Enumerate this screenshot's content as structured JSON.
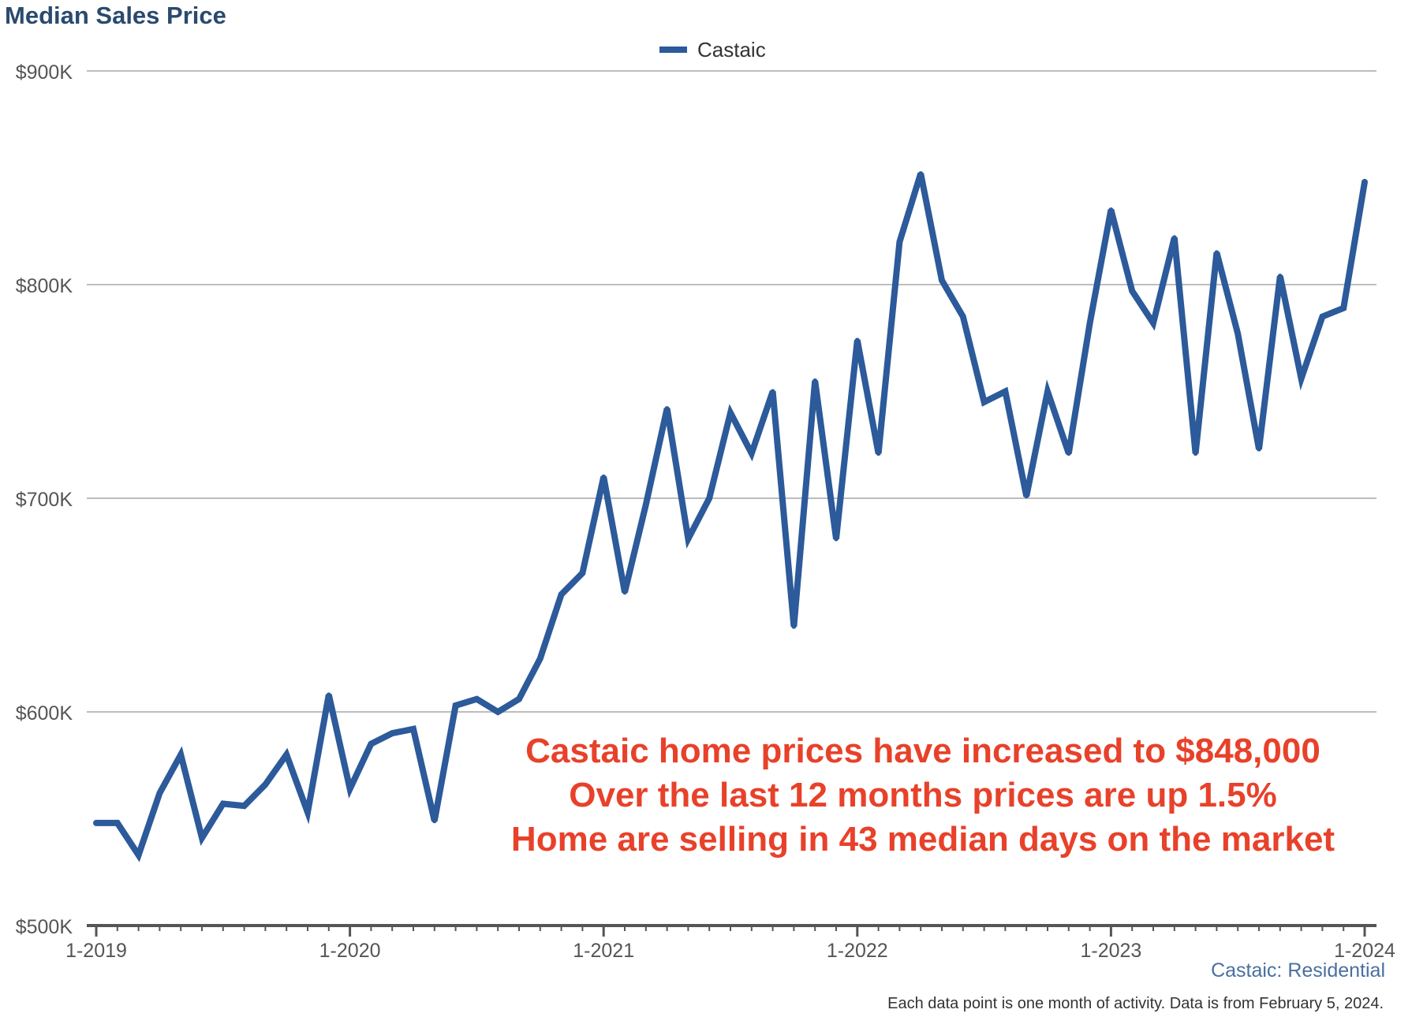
{
  "title": "Median Sales Price",
  "source_label": "Castaic: Residential",
  "footnote": "Each data point is one month of activity. Data is from February 5, 2024.",
  "annotation": [
    "Castaic home prices have increased to $848,000",
    "Over the last 12 months prices are up 1.5%",
    "Home are selling in 43 median days on the market"
  ],
  "colors": {
    "line": "#2c5a9a",
    "annotation": "#e8412a",
    "grid": "#bdbdbd",
    "axis": "#555555"
  },
  "chart_data": {
    "type": "line",
    "title": "Median Sales Price",
    "xlabel": "",
    "ylabel": "",
    "ylim": [
      500000,
      900000
    ],
    "yticks": [
      500000,
      600000,
      700000,
      800000,
      900000
    ],
    "ytick_labels": [
      "$500K",
      "$600K",
      "$700K",
      "$800K",
      "$900K"
    ],
    "xtick_labels": [
      "1-2019",
      "1-2020",
      "1-2021",
      "1-2022",
      "1-2023",
      "1-2024"
    ],
    "xtick_index": [
      0,
      12,
      24,
      36,
      48,
      60
    ],
    "legend": "top-center",
    "grid": true,
    "series": [
      {
        "name": "Castaic",
        "values": [
          548000,
          548000,
          533000,
          562000,
          580000,
          541000,
          557000,
          556000,
          566000,
          580000,
          553000,
          608000,
          564000,
          585000,
          590000,
          592000,
          549000,
          603000,
          606000,
          600000,
          606000,
          625000,
          655000,
          665000,
          710000,
          656000,
          697000,
          742000,
          681000,
          700000,
          740000,
          721000,
          750000,
          640000,
          755000,
          681000,
          774000,
          721000,
          820000,
          852000,
          802000,
          785000,
          745000,
          750000,
          701000,
          750000,
          721000,
          782000,
          835000,
          797000,
          782000,
          822000,
          721000,
          815000,
          777000,
          723000,
          804000,
          756000,
          785000,
          789000,
          848000
        ]
      }
    ]
  }
}
